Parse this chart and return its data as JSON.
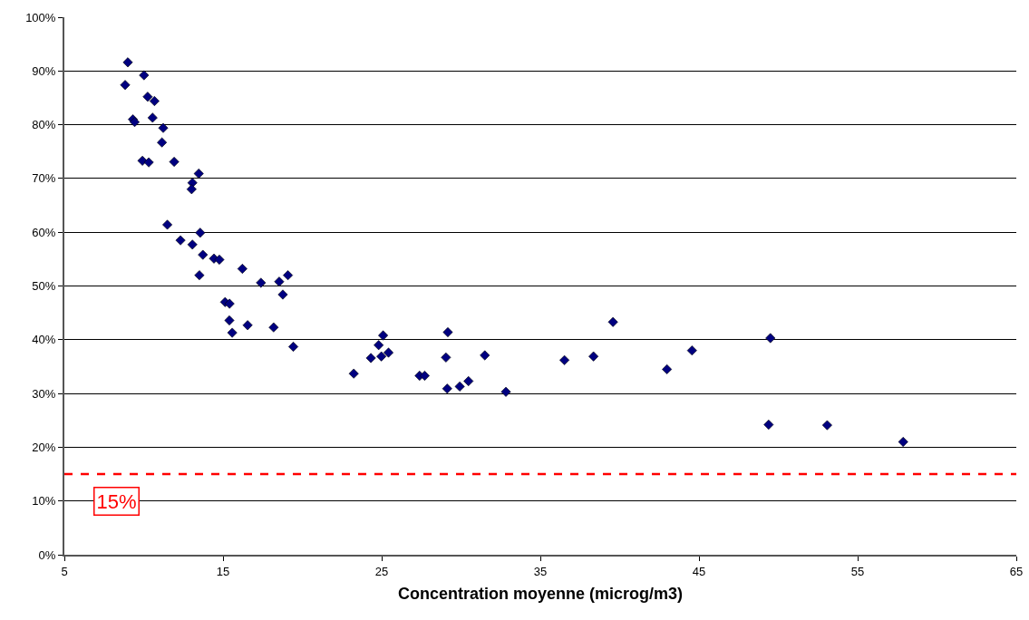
{
  "chart_data": {
    "type": "scatter",
    "xlabel": "Concentration moyenne (microg/m3)",
    "x": [
      9.0,
      10.02,
      8.83,
      10.25,
      10.68,
      9.32,
      9.43,
      10.56,
      11.23,
      11.15,
      9.92,
      10.32,
      11.92,
      13.47,
      13.07,
      13.02,
      11.49,
      13.56,
      12.32,
      13.07,
      13.73,
      14.43,
      14.77,
      16.22,
      17.39,
      18.54,
      19.09,
      18.77,
      13.51,
      15.13,
      15.41,
      15.4,
      16.55,
      18.19,
      15.58,
      19.43,
      23.24,
      25.09,
      24.81,
      24.32,
      24.98,
      25.43,
      27.39,
      27.71,
      29.17,
      29.05,
      29.13,
      29.92,
      30.47,
      31.5,
      32.83,
      36.52,
      38.35,
      39.58,
      42.98,
      44.56,
      49.5,
      49.39,
      53.08,
      57.87
    ],
    "values": [
      91.6,
      89.2,
      87.4,
      85.2,
      84.4,
      81.0,
      80.5,
      81.3,
      79.4,
      76.7,
      73.3,
      73.0,
      73.1,
      70.9,
      69.2,
      68.0,
      61.4,
      59.9,
      58.5,
      57.7,
      55.8,
      55.1,
      54.9,
      53.2,
      50.6,
      50.8,
      52.0,
      48.4,
      52.0,
      47.0,
      46.7,
      43.6,
      42.7,
      42.3,
      41.3,
      38.7,
      33.7,
      40.8,
      39.0,
      36.6,
      36.9,
      37.6,
      33.3,
      33.3,
      41.4,
      36.7,
      30.9,
      31.3,
      32.3,
      37.1,
      30.3,
      36.2,
      36.9,
      43.3,
      34.5,
      38.0,
      40.3,
      24.2,
      24.1,
      21.0
    ],
    "color": "#000080",
    "marker": "diamond",
    "xlim": [
      5,
      65
    ],
    "xticks": [
      5,
      15,
      25,
      35,
      45,
      55,
      65
    ],
    "ylim": [
      0,
      100
    ],
    "yticks": [
      {
        "value": 0,
        "label": "0%"
      },
      {
        "value": 10,
        "label": "10%"
      },
      {
        "value": 20,
        "label": "20%"
      },
      {
        "value": 30,
        "label": "30%"
      },
      {
        "value": 40,
        "label": "40%"
      },
      {
        "value": 50,
        "label": "50%"
      },
      {
        "value": 60,
        "label": "60%"
      },
      {
        "value": 70,
        "label": "70%"
      },
      {
        "value": 80,
        "label": "80%"
      },
      {
        "value": 90,
        "label": "90%"
      },
      {
        "value": 100,
        "label": "100%"
      }
    ],
    "grid": "y",
    "ref_lines": [
      {
        "axis": "y",
        "value": 15,
        "label": "15%",
        "color": "#ff0000",
        "line_style": "dashed"
      }
    ]
  }
}
